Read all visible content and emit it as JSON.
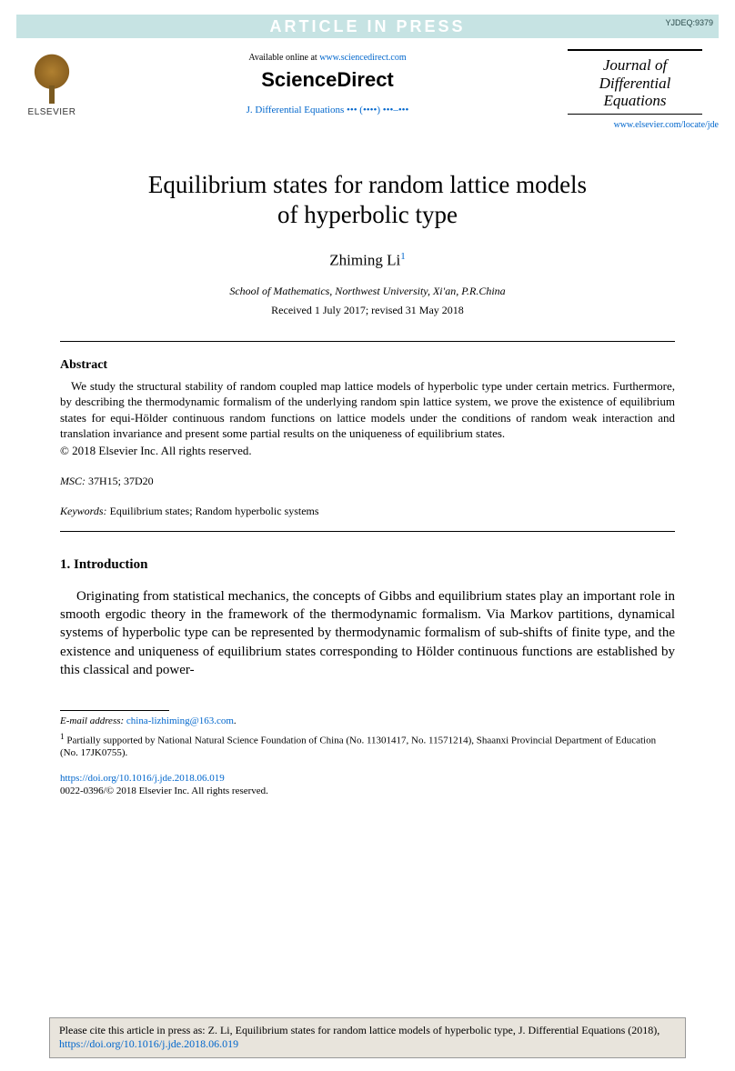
{
  "banner": {
    "text": "ARTICLE IN PRESS",
    "code": "YJDEQ:9379"
  },
  "header": {
    "elsevier_label": "ELSEVIER",
    "available_prefix": "Available online at ",
    "available_link": "www.sciencedirect.com",
    "sd_logo": "ScienceDirect",
    "journal_short": "J. Differential Equations ••• (••••) •••–•••",
    "journal_name_l1": "Journal of",
    "journal_name_l2": "Differential",
    "journal_name_l3": "Equations",
    "journal_url": "www.elsevier.com/locate/jde"
  },
  "title_l1": "Equilibrium states for random lattice models",
  "title_l2": "of hyperbolic type",
  "author": "Zhiming Li",
  "author_sup": "1",
  "affiliation": "School of Mathematics, Northwest University, Xi'an, P.R.China",
  "dates": "Received 1 July 2017; revised 31 May 2018",
  "abstract": {
    "heading": "Abstract",
    "body": "We study the structural stability of random coupled map lattice models of hyperbolic type under certain metrics. Furthermore, by describing the thermodynamic formalism of the underlying random spin lattice system, we prove the existence of equilibrium states for equi-Hölder continuous random functions on lattice models under the conditions of random weak interaction and translation invariance and present some partial results on the uniqueness of equilibrium states.",
    "copyright": "© 2018 Elsevier Inc. All rights reserved."
  },
  "msc": {
    "label": "MSC:",
    "value": " 37H15; 37D20"
  },
  "keywords": {
    "label": "Keywords:",
    "value": " Equilibrium states; Random hyperbolic systems"
  },
  "section1": {
    "heading": "1.  Introduction",
    "para": "Originating from statistical mechanics, the concepts of Gibbs and equilibrium states play an important role in smooth ergodic theory in the framework of the thermodynamic formalism. Via Markov partitions, dynamical systems of hyperbolic type can be represented by thermodynamic formalism of sub-shifts of finite type, and the existence and uniqueness of equilibrium states corresponding to Hölder continuous functions are established by this classical and power-"
  },
  "footnotes": {
    "email_label": "E-mail address:",
    "email": "china-lizhiming@163.com",
    "note1_sup": "1",
    "note1": " Partially supported by National Natural Science Foundation of China (No. 11301417, No. 11571214), Shaanxi Provincial Department of Education (No. 17JK0755)."
  },
  "doi": "https://doi.org/10.1016/j.jde.2018.06.019",
  "bottom_copyright": "0022-0396/© 2018 Elsevier Inc. All rights reserved.",
  "citebox": {
    "prefix": "Please cite this article in press as: Z. Li, Equilibrium states for random lattice models of hyperbolic type, J. Differential Equations (2018), ",
    "link": "https://doi.org/10.1016/j.jde.2018.06.019"
  },
  "colors": {
    "banner_bg": "#c6e3e3",
    "link": "#0066cc",
    "citebox_bg": "#e8e4dc"
  }
}
